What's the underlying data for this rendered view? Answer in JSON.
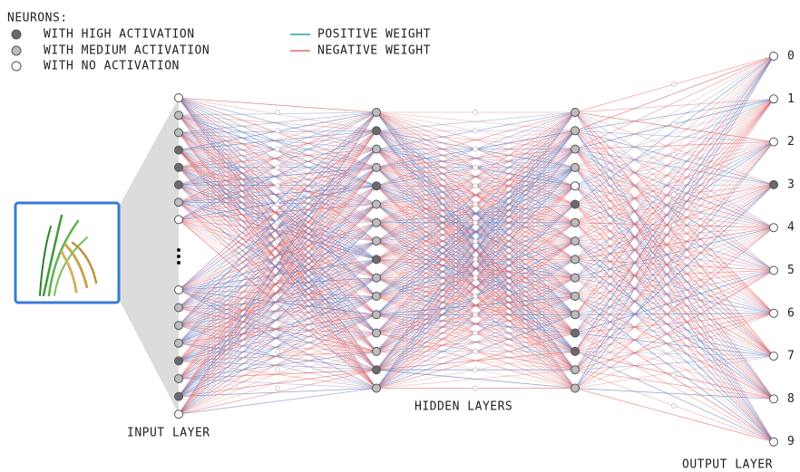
{
  "legend": {
    "title": "NEURONS:",
    "neurons": [
      "WITH HIGH ACTIVATION",
      "WITH MEDIUM ACTIVATION",
      "WITH NO ACTIVATION"
    ],
    "weights": [
      "POSITIVE WEIGHT",
      "NEGATIVE WEIGHT"
    ]
  },
  "layers": {
    "input": "INPUT LAYER",
    "hidden": "HIDDEN LAYERS",
    "output": "OUTPUT LAYER"
  },
  "output_labels": [
    "0",
    "1",
    "2",
    "3",
    "4",
    "5",
    "6",
    "7",
    "8",
    "9"
  ]
}
